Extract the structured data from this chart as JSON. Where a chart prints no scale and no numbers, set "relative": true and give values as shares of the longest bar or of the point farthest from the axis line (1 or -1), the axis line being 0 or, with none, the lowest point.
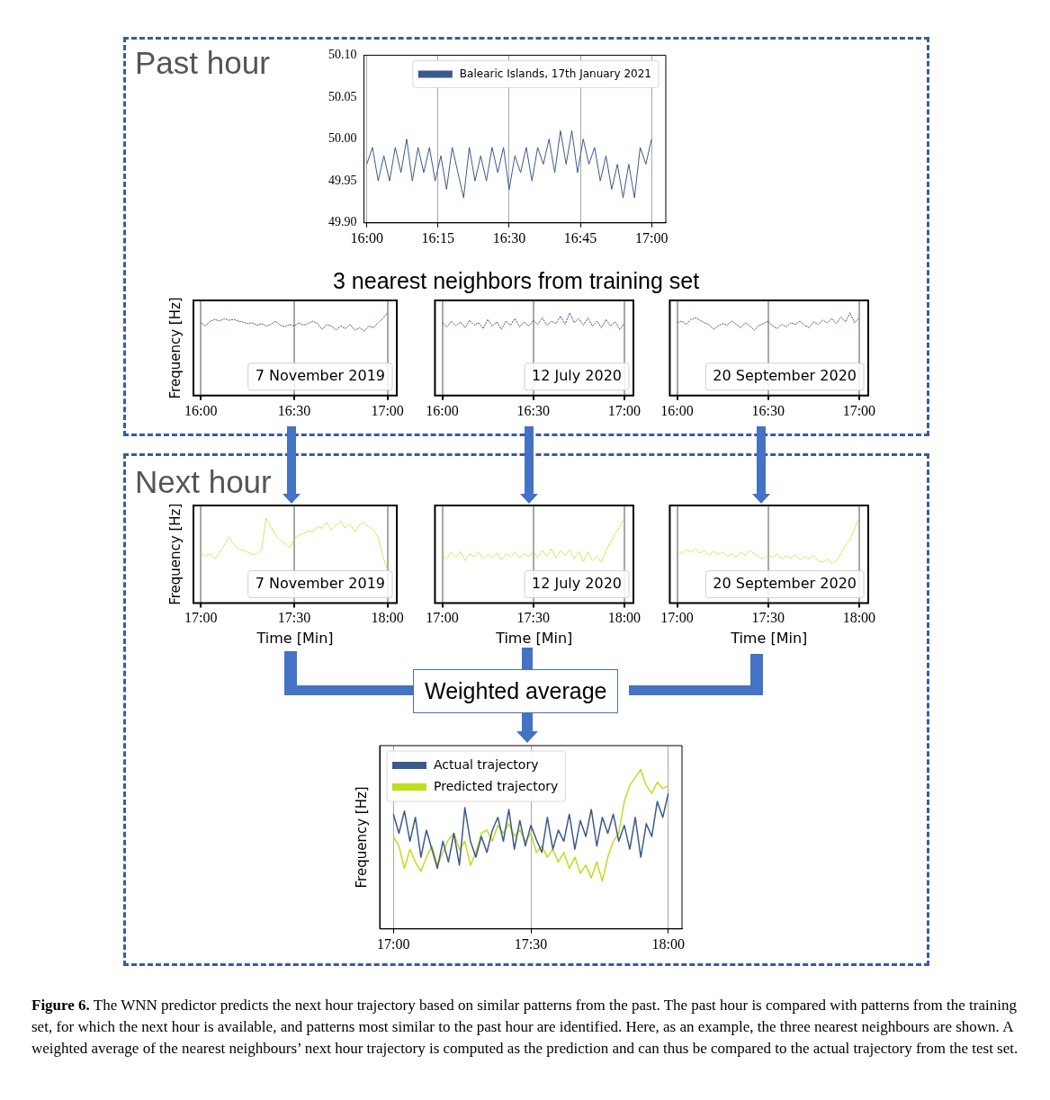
{
  "chart_data": [
    {
      "type": "line",
      "grid": "x",
      "legend": "top right",
      "xlim": [
        15.99,
        17.05
      ],
      "ylim": [
        49.9,
        50.1
      ],
      "xticks": [
        {
          "value": 16,
          "label": "16:00"
        },
        {
          "value": 16.25,
          "label": "16:15"
        },
        {
          "value": 16.5,
          "label": "16:30"
        },
        {
          "value": 16.75,
          "label": "16:45"
        },
        {
          "value": 17,
          "label": "17:00"
        }
      ],
      "yticks": [
        {
          "value": 49.9,
          "label": "49.90"
        },
        {
          "value": 49.95,
          "label": "49.95"
        },
        {
          "value": 50,
          "label": "50.00"
        },
        {
          "value": 50.05,
          "label": "50.05"
        },
        {
          "value": 50.1,
          "label": "50.10"
        }
      ],
      "series": [
        {
          "name": "Balearic Islands, 17th January 2021",
          "color": "#3a5a8c",
          "x": [
            16,
            16.02,
            16.04,
            16.06,
            16.08,
            16.1,
            16.12,
            16.14,
            16.16,
            16.18,
            16.2,
            16.22,
            16.24,
            16.26,
            16.28,
            16.3,
            16.32,
            16.34,
            16.36,
            16.38,
            16.4,
            16.42,
            16.44,
            16.46,
            16.48,
            16.5,
            16.52,
            16.54,
            16.56,
            16.58,
            16.6,
            16.62,
            16.64,
            16.66,
            16.68,
            16.7,
            16.72,
            16.74,
            16.76,
            16.78,
            16.8,
            16.82,
            16.84,
            16.86,
            16.88,
            16.9,
            16.92,
            16.94,
            16.96,
            16.98,
            17
          ],
          "values": [
            49.97,
            49.99,
            49.95,
            49.98,
            49.95,
            49.99,
            49.96,
            50.0,
            49.95,
            49.99,
            49.96,
            49.99,
            49.95,
            49.98,
            49.94,
            49.99,
            49.96,
            49.93,
            49.99,
            49.95,
            49.98,
            49.95,
            49.99,
            49.96,
            49.99,
            49.94,
            49.98,
            49.96,
            49.99,
            49.95,
            49.99,
            49.97,
            50.0,
            49.96,
            50.01,
            49.97,
            50.01,
            49.96,
            50.0,
            49.97,
            49.99,
            49.95,
            49.98,
            49.94,
            49.97,
            49.93,
            49.97,
            49.93,
            49.99,
            49.97,
            50.0
          ]
        }
      ]
    },
    {
      "type": "line",
      "relative": true,
      "grid": "x",
      "tick_labels": "x",
      "line_style": "dotted",
      "ylabel": "Frequency [Hz]",
      "annotations": [
        "7 November 2019"
      ],
      "xlim": [
        15.96,
        17.05
      ],
      "xticks": [
        {
          "value": 16,
          "label": "16:00"
        },
        {
          "value": 16.5,
          "label": "16:30"
        },
        {
          "value": 17,
          "label": "17:00"
        }
      ],
      "series": [
        {
          "color": "#3a5a8c",
          "x": [
            16,
            16.025,
            16.05,
            16.075,
            16.1,
            16.125,
            16.15,
            16.175,
            16.2,
            16.225,
            16.25,
            16.275,
            16.3,
            16.325,
            16.35,
            16.375,
            16.4,
            16.425,
            16.45,
            16.475,
            16.5,
            16.525,
            16.55,
            16.575,
            16.6,
            16.625,
            16.65,
            16.675,
            16.7,
            16.725,
            16.75,
            16.775,
            16.8,
            16.825,
            16.85,
            16.875,
            16.9,
            16.925,
            16.95,
            16.975,
            17
          ],
          "values": [
            0.88,
            0.84,
            0.9,
            0.92,
            0.9,
            0.93,
            0.91,
            0.92,
            0.9,
            0.89,
            0.87,
            0.88,
            0.85,
            0.87,
            0.84,
            0.86,
            0.9,
            0.85,
            0.83,
            0.86,
            0.84,
            0.88,
            0.85,
            0.87,
            0.9,
            0.87,
            0.8,
            0.86,
            0.84,
            0.79,
            0.84,
            0.81,
            0.86,
            0.79,
            0.82,
            0.78,
            0.84,
            0.82,
            0.88,
            0.93,
            1.0
          ]
        }
      ]
    },
    {
      "type": "line",
      "relative": true,
      "grid": "x",
      "tick_labels": "x",
      "line_style": "dotted",
      "annotations": [
        "12 July 2020"
      ],
      "xlim": [
        15.96,
        17.05
      ],
      "xticks": [
        {
          "value": 16,
          "label": "16:00"
        },
        {
          "value": 16.5,
          "label": "16:30"
        },
        {
          "value": 17,
          "label": "17:00"
        }
      ],
      "series": [
        {
          "color": "#3a5a8c",
          "x": [
            16,
            16.025,
            16.05,
            16.075,
            16.1,
            16.125,
            16.15,
            16.175,
            16.2,
            16.225,
            16.25,
            16.275,
            16.3,
            16.325,
            16.35,
            16.375,
            16.4,
            16.425,
            16.45,
            16.475,
            16.5,
            16.525,
            16.55,
            16.575,
            16.6,
            16.625,
            16.65,
            16.675,
            16.7,
            16.725,
            16.75,
            16.775,
            16.8,
            16.825,
            16.85,
            16.875,
            16.9,
            16.925,
            16.95,
            16.975,
            17
          ],
          "values": [
            0.88,
            0.83,
            0.9,
            0.84,
            0.89,
            0.82,
            0.91,
            0.85,
            0.88,
            0.81,
            0.92,
            0.84,
            0.89,
            0.8,
            0.9,
            0.85,
            0.93,
            0.83,
            0.89,
            0.84,
            0.91,
            0.86,
            0.94,
            0.85,
            0.9,
            0.87,
            0.96,
            0.86,
            1.0,
            0.88,
            0.93,
            0.85,
            0.94,
            0.84,
            0.9,
            0.82,
            0.92,
            0.84,
            0.89,
            0.8,
            0.87
          ]
        }
      ]
    },
    {
      "type": "line",
      "relative": true,
      "grid": "x",
      "tick_labels": "x",
      "line_style": "dotted",
      "annotations": [
        "20 September 2020"
      ],
      "xlim": [
        15.96,
        17.05
      ],
      "xticks": [
        {
          "value": 16,
          "label": "16:00"
        },
        {
          "value": 16.5,
          "label": "16:30"
        },
        {
          "value": 17,
          "label": "17:00"
        }
      ],
      "series": [
        {
          "color": "#3a5a8c",
          "x": [
            16,
            16.025,
            16.05,
            16.075,
            16.1,
            16.125,
            16.15,
            16.175,
            16.2,
            16.225,
            16.25,
            16.275,
            16.3,
            16.325,
            16.35,
            16.375,
            16.4,
            16.425,
            16.45,
            16.475,
            16.5,
            16.525,
            16.55,
            16.575,
            16.6,
            16.625,
            16.65,
            16.675,
            16.7,
            16.725,
            16.75,
            16.775,
            16.8,
            16.825,
            16.85,
            16.875,
            16.9,
            16.925,
            16.95,
            16.975,
            17
          ],
          "values": [
            0.88,
            0.9,
            0.86,
            0.92,
            0.94,
            0.91,
            0.88,
            0.86,
            0.8,
            0.84,
            0.87,
            0.85,
            0.9,
            0.86,
            0.82,
            0.88,
            0.84,
            0.79,
            0.85,
            0.87,
            0.9,
            0.84,
            0.81,
            0.86,
            0.83,
            0.88,
            0.86,
            0.9,
            0.85,
            0.82,
            0.89,
            0.86,
            0.91,
            0.88,
            0.93,
            0.87,
            0.95,
            0.89,
            1.0,
            0.88,
            0.94
          ]
        }
      ]
    },
    {
      "type": "line",
      "relative": true,
      "grid": "x",
      "tick_labels": "x",
      "line_style": "dotted",
      "ylabel": "Frequency [Hz]",
      "xlabel": "Time [Min]",
      "annotations": [
        "7 November 2019"
      ],
      "xlim": [
        16.96,
        18.05
      ],
      "xticks": [
        {
          "value": 17,
          "label": "17:00"
        },
        {
          "value": 17.5,
          "label": "17:30"
        },
        {
          "value": 18,
          "label": "18:00"
        }
      ],
      "series": [
        {
          "color": "#c2dc1e",
          "x": [
            17,
            17.025,
            17.05,
            17.075,
            17.1,
            17.125,
            17.15,
            17.175,
            17.2,
            17.225,
            17.25,
            17.275,
            17.3,
            17.325,
            17.35,
            17.375,
            17.4,
            17.425,
            17.45,
            17.475,
            17.5,
            17.525,
            17.55,
            17.575,
            17.6,
            17.625,
            17.65,
            17.675,
            17.7,
            17.725,
            17.75,
            17.775,
            17.8,
            17.825,
            17.85,
            17.875,
            17.9,
            17.925,
            17.95,
            17.975,
            18
          ],
          "values": [
            0.6,
            0.55,
            0.58,
            0.52,
            0.6,
            0.68,
            0.78,
            0.7,
            0.64,
            0.62,
            0.6,
            0.57,
            0.58,
            0.62,
            1.0,
            0.9,
            0.8,
            0.74,
            0.7,
            0.65,
            0.76,
            0.8,
            0.82,
            0.85,
            0.84,
            0.9,
            0.88,
            0.95,
            0.86,
            0.92,
            0.96,
            0.88,
            0.93,
            0.84,
            0.92,
            0.95,
            0.9,
            0.86,
            0.78,
            0.55,
            0.4
          ]
        }
      ]
    },
    {
      "type": "line",
      "relative": true,
      "grid": "x",
      "tick_labels": "x",
      "line_style": "dotted",
      "xlabel": "Time [Min]",
      "annotations": [
        "12 July 2020"
      ],
      "xlim": [
        16.96,
        18.05
      ],
      "xticks": [
        {
          "value": 17,
          "label": "17:00"
        },
        {
          "value": 17.5,
          "label": "17:30"
        },
        {
          "value": 18,
          "label": "18:00"
        }
      ],
      "series": [
        {
          "color": "#c2dc1e",
          "x": [
            17,
            17.025,
            17.05,
            17.075,
            17.1,
            17.125,
            17.15,
            17.175,
            17.2,
            17.225,
            17.25,
            17.275,
            17.3,
            17.325,
            17.35,
            17.375,
            17.4,
            17.425,
            17.45,
            17.475,
            17.5,
            17.525,
            17.55,
            17.575,
            17.6,
            17.625,
            17.65,
            17.675,
            17.7,
            17.725,
            17.75,
            17.775,
            17.8,
            17.825,
            17.85,
            17.875,
            17.9,
            17.925,
            17.95,
            17.975,
            18
          ],
          "values": [
            0.58,
            0.52,
            0.6,
            0.54,
            0.61,
            0.5,
            0.58,
            0.55,
            0.6,
            0.52,
            0.57,
            0.54,
            0.59,
            0.51,
            0.58,
            0.55,
            0.6,
            0.53,
            0.58,
            0.55,
            0.61,
            0.54,
            0.62,
            0.55,
            0.64,
            0.53,
            0.62,
            0.56,
            0.63,
            0.52,
            0.61,
            0.49,
            0.6,
            0.5,
            0.55,
            0.48,
            0.62,
            0.72,
            0.82,
            0.9,
            1.0
          ]
        }
      ]
    },
    {
      "type": "line",
      "relative": true,
      "grid": "x",
      "tick_labels": "x",
      "line_style": "dotted",
      "xlabel": "Time [Min]",
      "annotations": [
        "20 September 2020"
      ],
      "xlim": [
        16.96,
        18.05
      ],
      "xticks": [
        {
          "value": 17,
          "label": "17:00"
        },
        {
          "value": 17.5,
          "label": "17:30"
        },
        {
          "value": 18,
          "label": "18:00"
        }
      ],
      "series": [
        {
          "color": "#c2dc1e",
          "x": [
            17,
            17.025,
            17.05,
            17.075,
            17.1,
            17.125,
            17.15,
            17.175,
            17.2,
            17.225,
            17.25,
            17.275,
            17.3,
            17.325,
            17.35,
            17.375,
            17.4,
            17.425,
            17.45,
            17.475,
            17.5,
            17.525,
            17.55,
            17.575,
            17.6,
            17.625,
            17.65,
            17.675,
            17.7,
            17.725,
            17.75,
            17.775,
            17.8,
            17.825,
            17.85,
            17.875,
            17.9,
            17.925,
            17.95,
            17.975,
            18
          ],
          "values": [
            0.62,
            0.58,
            0.63,
            0.6,
            0.64,
            0.59,
            0.62,
            0.56,
            0.61,
            0.57,
            0.6,
            0.55,
            0.58,
            0.54,
            0.6,
            0.56,
            0.62,
            0.58,
            0.55,
            0.52,
            0.57,
            0.54,
            0.58,
            0.52,
            0.56,
            0.53,
            0.57,
            0.51,
            0.55,
            0.52,
            0.56,
            0.5,
            0.48,
            0.52,
            0.47,
            0.5,
            0.58,
            0.68,
            0.74,
            0.88,
            1.0
          ]
        }
      ]
    },
    {
      "type": "line",
      "relative": true,
      "grid": "x",
      "tick_labels": "x",
      "legend": "top left",
      "ylabel": "Frequency [Hz]",
      "xlim": [
        16.95,
        18.05
      ],
      "xticks": [
        {
          "value": 17,
          "label": "17:00"
        },
        {
          "value": 17.5,
          "label": "17:30"
        },
        {
          "value": 18,
          "label": "18:00"
        }
      ],
      "series": [
        {
          "name": "Actual trajectory",
          "color": "#3a5a8c",
          "x": [
            17,
            17.02,
            17.04,
            17.06,
            17.08,
            17.1,
            17.12,
            17.14,
            17.16,
            17.18,
            17.2,
            17.22,
            17.24,
            17.26,
            17.28,
            17.3,
            17.32,
            17.34,
            17.36,
            17.38,
            17.4,
            17.42,
            17.44,
            17.46,
            17.48,
            17.5,
            17.52,
            17.54,
            17.56,
            17.58,
            17.6,
            17.62,
            17.64,
            17.66,
            17.68,
            17.7,
            17.72,
            17.74,
            17.76,
            17.78,
            17.8,
            17.82,
            17.84,
            17.86,
            17.88,
            17.9,
            17.92,
            17.94,
            17.96,
            17.98,
            18
          ],
          "values": [
            0.72,
            0.6,
            0.74,
            0.55,
            0.7,
            0.45,
            0.62,
            0.5,
            0.38,
            0.55,
            0.42,
            0.6,
            0.4,
            0.76,
            0.55,
            0.45,
            0.58,
            0.48,
            0.62,
            0.7,
            0.55,
            0.75,
            0.5,
            0.68,
            0.52,
            0.65,
            0.56,
            0.48,
            0.7,
            0.5,
            0.62,
            0.55,
            0.72,
            0.5,
            0.68,
            0.58,
            0.75,
            0.52,
            0.7,
            0.6,
            0.72,
            0.55,
            0.65,
            0.5,
            0.7,
            0.45,
            0.66,
            0.58,
            0.8,
            0.7,
            0.85
          ]
        },
        {
          "name": "Predicted trajectory",
          "color": "#c2dc1e",
          "x": [
            17,
            17.02,
            17.04,
            17.06,
            17.08,
            17.1,
            17.12,
            17.14,
            17.16,
            17.18,
            17.2,
            17.22,
            17.24,
            17.26,
            17.28,
            17.3,
            17.32,
            17.34,
            17.36,
            17.38,
            17.4,
            17.42,
            17.44,
            17.46,
            17.48,
            17.5,
            17.52,
            17.54,
            17.56,
            17.58,
            17.6,
            17.62,
            17.64,
            17.66,
            17.68,
            17.7,
            17.72,
            17.74,
            17.76,
            17.78,
            17.8,
            17.82,
            17.84,
            17.86,
            17.88,
            17.9,
            17.92,
            17.94,
            17.96,
            17.98,
            18
          ],
          "values": [
            0.58,
            0.52,
            0.38,
            0.5,
            0.42,
            0.36,
            0.45,
            0.52,
            0.4,
            0.48,
            0.56,
            0.6,
            0.5,
            0.55,
            0.4,
            0.48,
            0.6,
            0.62,
            0.55,
            0.65,
            0.6,
            0.66,
            0.58,
            0.62,
            0.55,
            0.6,
            0.48,
            0.52,
            0.45,
            0.5,
            0.42,
            0.48,
            0.38,
            0.45,
            0.35,
            0.4,
            0.32,
            0.42,
            0.3,
            0.45,
            0.55,
            0.6,
            0.8,
            0.9,
            0.95,
            1.0,
            0.9,
            0.85,
            0.92,
            0.88,
            0.9
          ]
        }
      ]
    },
    {
      "type": "other",
      "annotations": [
        "Past hour",
        "3 nearest neighbors from training set",
        "Next hour",
        "Weighted average",
        "Figure 6. The WNN predictor predicts the next hour trajectory based on similar patterns from the past. The past hour is compared with patterns from the training set, for which the next hour is available, and patterns most similar to the past hour are identified. Here, as an example, the three nearest neighbours are shown. A weighted average of the nearest neighbours’ next hour trajectory is computed as the prediction and can thus be compared to the actual trajectory from the test set."
      ]
    }
  ]
}
